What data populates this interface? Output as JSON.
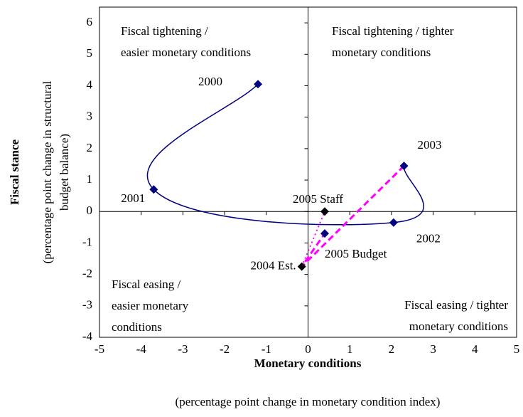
{
  "chart_data": {
    "type": "scatter",
    "title_x": "Monetary conditions",
    "subtitle_x": "(percentage point change in monetary condition index)",
    "title_y": "Fiscal stance",
    "subtitle_y": [
      "(percentage point change in structural",
      "budget balance)"
    ],
    "xlim": [
      -5,
      5
    ],
    "xticks": [
      -5,
      -4,
      -3,
      -2,
      -1,
      0,
      1,
      2,
      3,
      4,
      5
    ],
    "ylim": [
      -4,
      6.5
    ],
    "yticks": [
      -4,
      -3,
      -2,
      -1,
      0,
      1,
      2,
      3,
      4,
      5,
      6
    ],
    "quadrants": [
      [
        "Fiscal tightening /",
        "easier monetary conditions"
      ],
      [
        "Fiscal tightening / tighter",
        "monetary conditions"
      ],
      [
        "Fiscal easing /",
        "easier monetary",
        "conditions"
      ],
      [
        "Fiscal easing / tighter",
        "monetary conditions"
      ]
    ],
    "points": [
      {
        "label": "2000",
        "x": -1.2,
        "y": 4.05,
        "color": "#000080"
      },
      {
        "label": "2001",
        "x": -3.7,
        "y": 0.7,
        "color": "#000080"
      },
      {
        "label": "2002",
        "x": 2.05,
        "y": -0.35,
        "color": "#000080"
      },
      {
        "label": "2003",
        "x": 2.3,
        "y": 1.45,
        "color": "#000080"
      },
      {
        "label": "2004 Est.",
        "x": -0.15,
        "y": -1.75,
        "color": "#000000"
      },
      {
        "label": "2005 Staff",
        "x": 0.4,
        "y": 0.0,
        "color": "#000000"
      },
      {
        "label": "2005 Budget",
        "x": 0.4,
        "y": -0.7,
        "color": "#000080"
      }
    ],
    "lines": [
      {
        "color": "#000080",
        "style": "smooth",
        "x": [
          -1.2,
          -3.7,
          2.05,
          2.3
        ],
        "y": [
          4.05,
          0.7,
          -0.35,
          1.45
        ]
      },
      {
        "color": "#ff00ff",
        "style": "dashed",
        "x": [
          2.3,
          -0.15,
          0.4
        ],
        "y": [
          1.45,
          -1.75,
          -0.7
        ]
      },
      {
        "color": "#ff00ff",
        "style": "dotted",
        "x": [
          -0.15,
          0.4
        ],
        "y": [
          -1.75,
          0.0
        ]
      }
    ]
  }
}
